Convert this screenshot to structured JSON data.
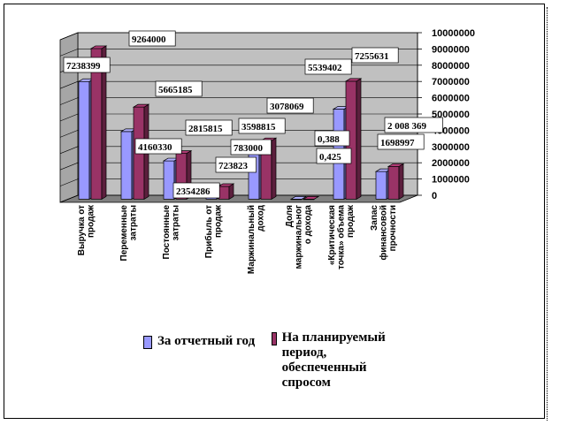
{
  "chart_data": {
    "type": "bar",
    "variant": "3d-clustered",
    "categories": [
      "Выручка от продаж",
      "Переменные затраты",
      "Постоянные затраты",
      "Прибыль от продаж",
      "Маржинальный доход",
      "Доля маржинального дохода",
      "«Критическая точка» объема продаж",
      "Запас финансовой прочности"
    ],
    "series": [
      {
        "name": "За отчетный год",
        "color": "#9999ff",
        "values": [
          7238399,
          4160330,
          2354286,
          723823,
          3078069,
          0.425,
          5539402,
          1698997
        ],
        "labels": [
          "7238399",
          "4160330",
          "2354286",
          "723823",
          "3078069",
          "0,425",
          "5539402",
          "1698997"
        ]
      },
      {
        "name": "На планируемый период, обеспеченный спросом",
        "color": "#993366",
        "values": [
          9264000,
          5665185,
          2815815,
          783000,
          3598815,
          0.388,
          7255631,
          2008369
        ],
        "labels": [
          "9264000",
          "5665185",
          "2815815",
          "783000",
          "3598815",
          "0,388",
          "7255631",
          "2 008 369"
        ]
      }
    ],
    "ylim": [
      0,
      10000000
    ],
    "yticks": [
      "0",
      "1000000",
      "2000000",
      "3000000",
      "4000000",
      "5000000",
      "6000000",
      "7000000",
      "8000000",
      "9000000",
      "10000000"
    ],
    "grid": true,
    "legend_position": "bottom"
  }
}
